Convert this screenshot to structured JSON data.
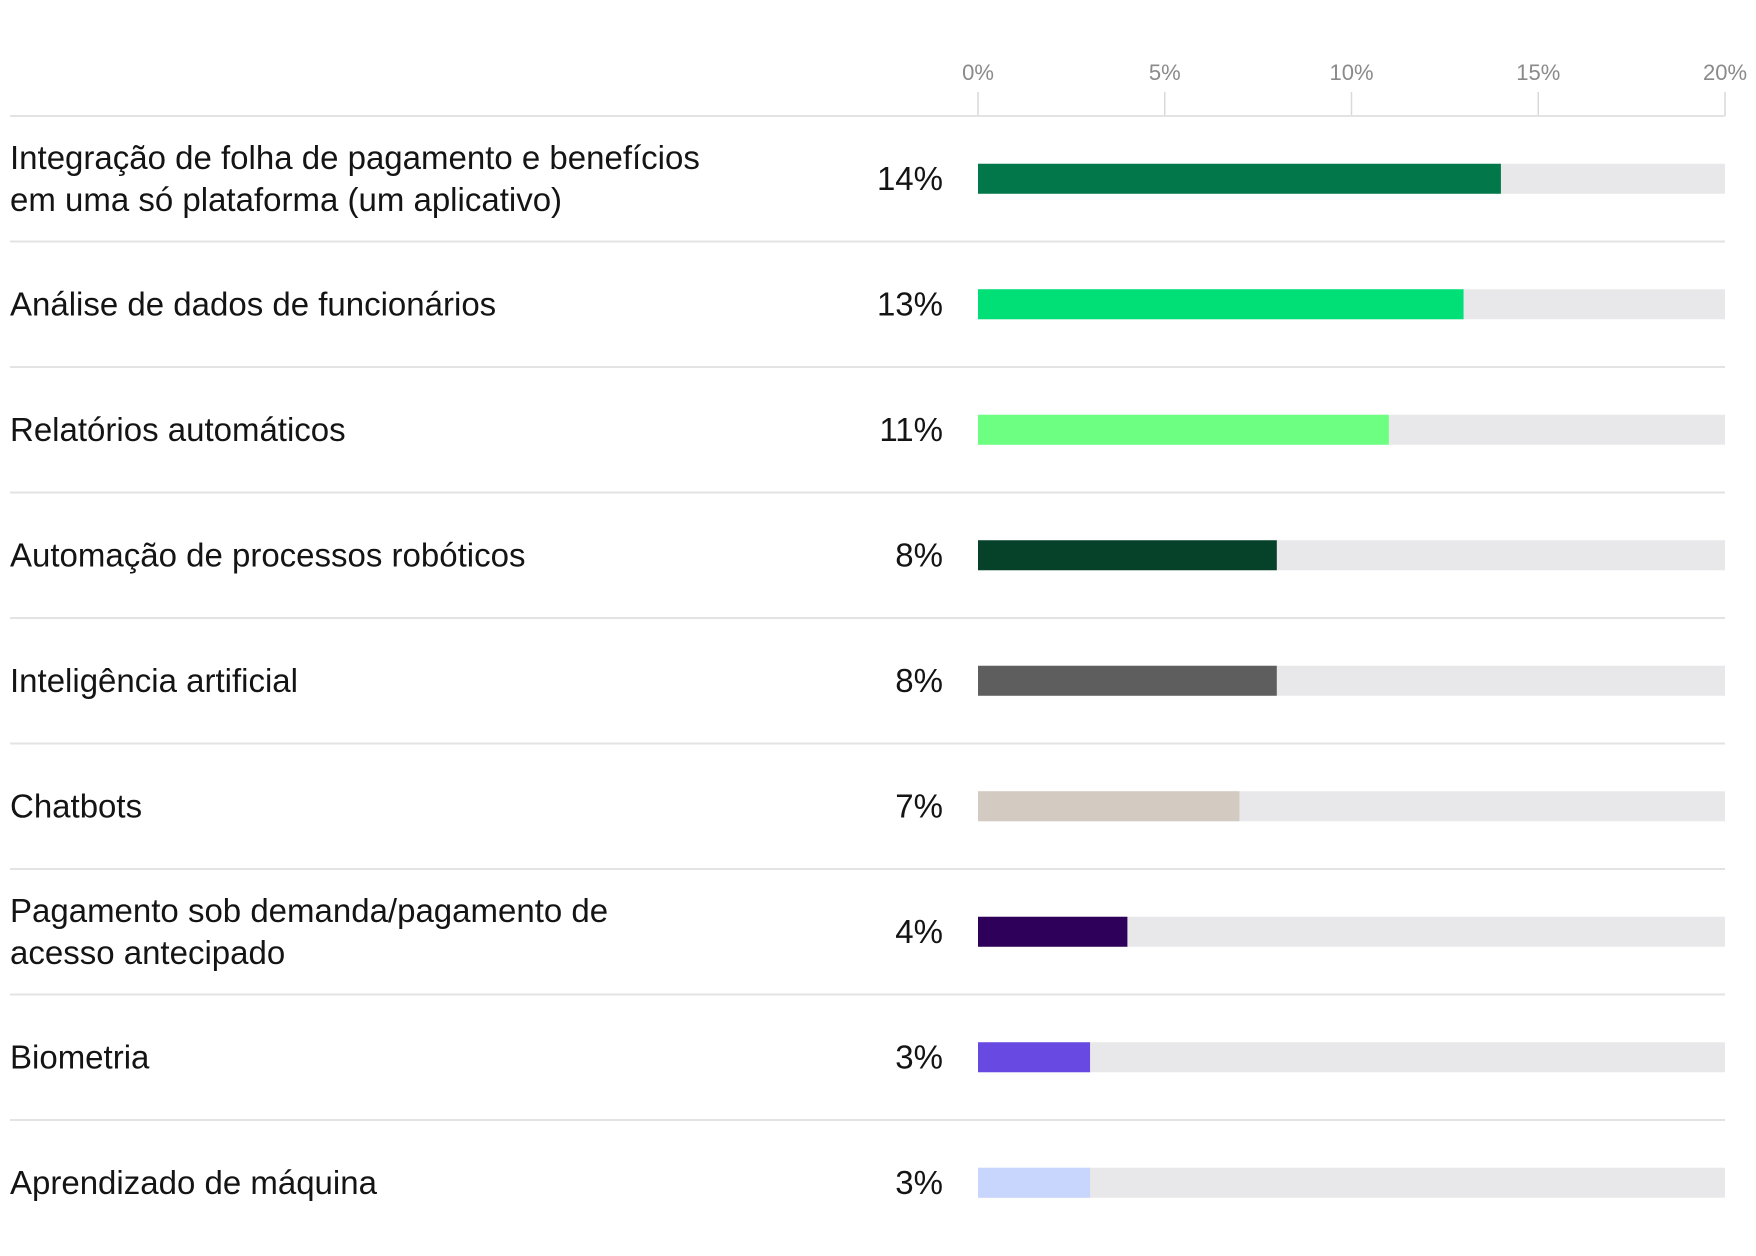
{
  "chart_data": {
    "type": "bar",
    "orientation": "horizontal",
    "title": "",
    "xlabel": "",
    "ylabel": "",
    "xlim": [
      0,
      20
    ],
    "x_ticks": [
      "0%",
      "5%",
      "10%",
      "15%",
      "20%"
    ],
    "x_tick_values": [
      0,
      5,
      10,
      15,
      20
    ],
    "grid": true,
    "categories": [
      [
        "Integração de folha de pagamento e benefícios",
        "em uma só plataforma (um aplicativo)"
      ],
      [
        "Análise de dados de funcionários"
      ],
      [
        "Relatórios automáticos"
      ],
      [
        "Automação de processos robóticos"
      ],
      [
        "Inteligência artificial"
      ],
      [
        "Chatbots"
      ],
      [
        "Pagamento sob demanda/pagamento de",
        "acesso antecipado"
      ],
      [
        "Biometria"
      ],
      [
        "Aprendizado de máquina"
      ]
    ],
    "values": [
      14,
      13,
      11,
      8,
      8,
      7,
      4,
      3,
      3
    ],
    "value_labels": [
      "14%",
      "13%",
      "11%",
      "8%",
      "8%",
      "7%",
      "4%",
      "3%",
      "3%"
    ],
    "colors": [
      "#02784a",
      "#00e077",
      "#6cff82",
      "#054229",
      "#5e5e5e",
      "#d3cbc1",
      "#2e0059",
      "#684ae3",
      "#c8d6fd"
    ],
    "track_color": "#e8e8ea",
    "gridline_color": "#d9d9d9",
    "separator_color": "#e3e3e3"
  }
}
